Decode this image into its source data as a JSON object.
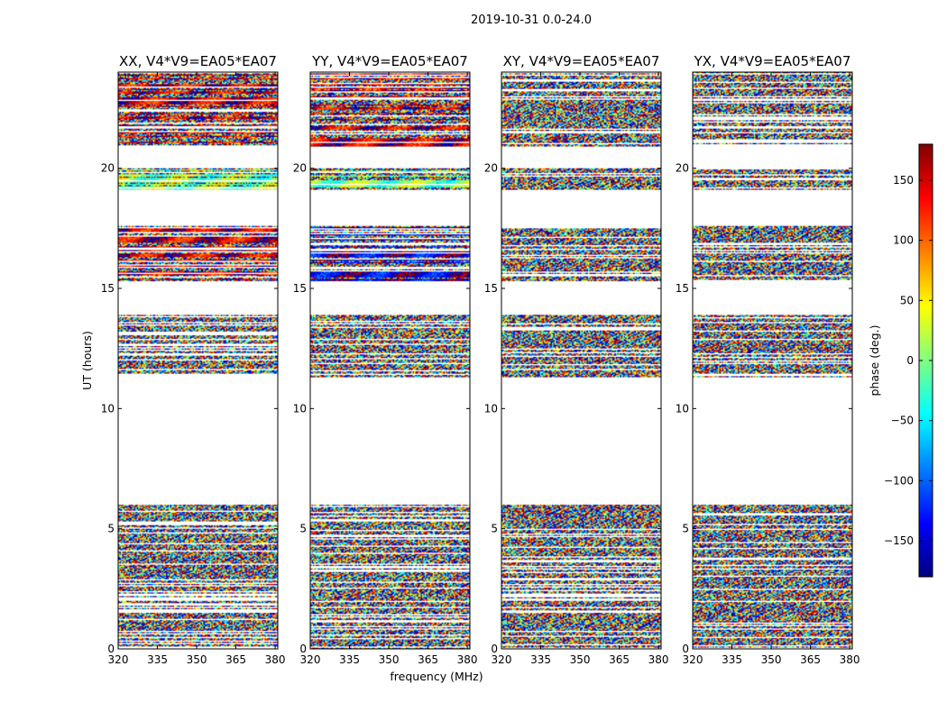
{
  "figure": {
    "suptitle": "2019-10-31 0.0-24.0"
  },
  "colors": {
    "background": "#ffffff",
    "axes": "#000000",
    "colormap": [
      "#000080",
      "#0000ff",
      "#0080ff",
      "#00ffff",
      "#80ff80",
      "#ffff00",
      "#ff8000",
      "#ff0000",
      "#800000"
    ]
  },
  "chart_data": {
    "type": "heatmap",
    "colormap": "jet",
    "panels": [
      {
        "title": "XX, V4*V9=EA05*EA07",
        "polarization": "XX"
      },
      {
        "title": "YY, V4*V9=EA05*EA07",
        "polarization": "YY"
      },
      {
        "title": "XY, V4*V9=EA05*EA07",
        "polarization": "XY"
      },
      {
        "title": "YX, V4*V9=EA05*EA07",
        "polarization": "YX"
      }
    ],
    "xlabel": "frequency (MHz)",
    "ylabel": "UT (hours)",
    "xlim": [
      320,
      381
    ],
    "ylim": [
      0,
      24
    ],
    "xticks": [
      320,
      335,
      350,
      365,
      380
    ],
    "yticks": [
      0,
      5,
      10,
      15,
      20
    ],
    "colorbar": {
      "label": "phase (deg.)",
      "range": [
        -180,
        180
      ],
      "ticks": [
        150,
        100,
        50,
        0,
        -50,
        -100,
        -150
      ],
      "tick_labels": [
        "150",
        "100",
        "50",
        "0",
        "−50",
        "−100",
        "−150"
      ]
    },
    "data_blocks_ut": [
      [
        0.0,
        6.0
      ],
      [
        11.3,
        13.9
      ],
      [
        15.3,
        17.6
      ],
      [
        19.1,
        20.0
      ],
      [
        20.9,
        24.0
      ]
    ],
    "block_phase_character": {
      "XX": [
        "noise",
        "noise",
        "mixed",
        "mixed",
        "mixed"
      ],
      "YY": [
        "noise",
        "noise",
        "mixed",
        "mixed",
        "mixed"
      ],
      "XY": [
        "noise",
        "noise",
        "noise",
        "noise",
        "noise"
      ],
      "YX": [
        "noise",
        "noise",
        "noise",
        "noise",
        "noise"
      ]
    },
    "block_mean_phase_deg": {
      "XX": [
        0,
        0,
        150,
        0,
        150
      ],
      "YY": [
        0,
        0,
        -150,
        0,
        150
      ],
      "XY": [
        0,
        0,
        0,
        0,
        0
      ],
      "YX": [
        0,
        0,
        0,
        0,
        0
      ]
    }
  }
}
